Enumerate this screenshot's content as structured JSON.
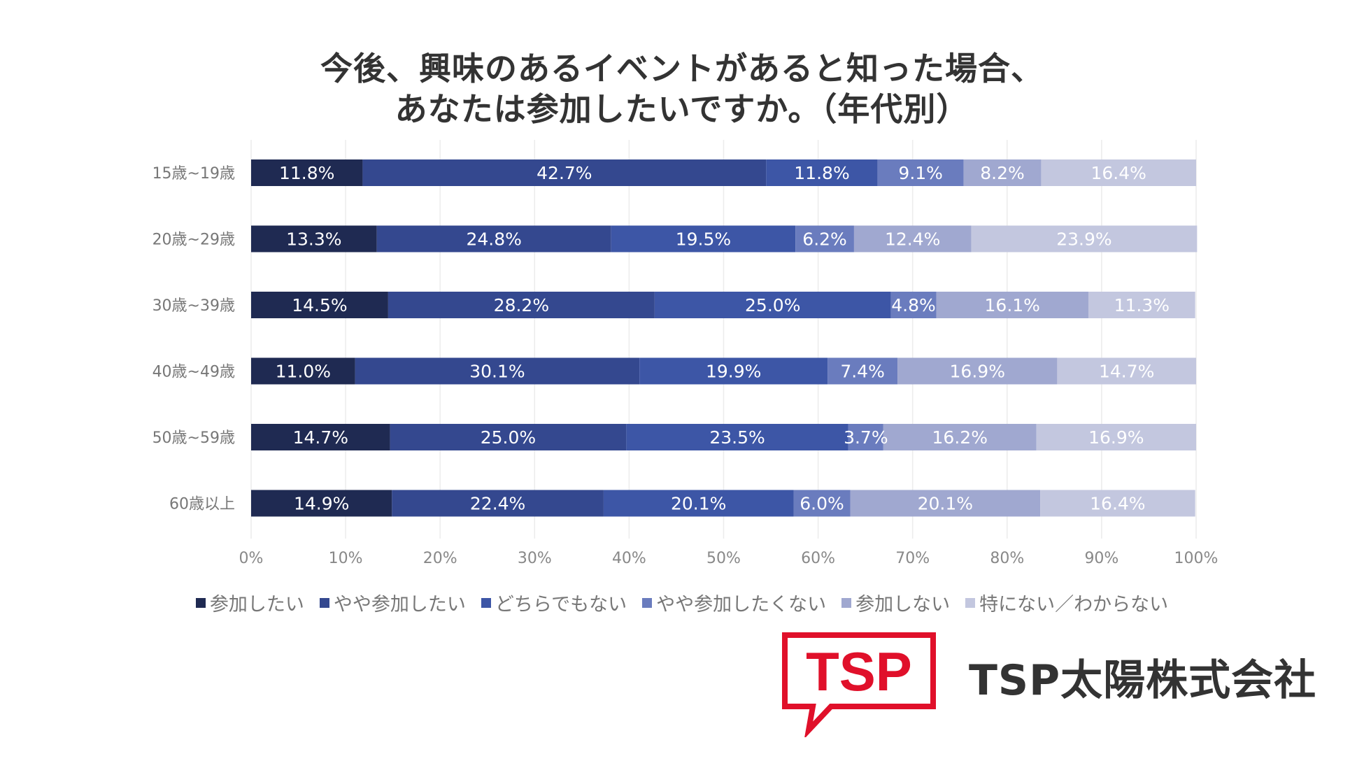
{
  "chart_data": {
    "type": "bar",
    "orientation": "horizontal",
    "stacked": true,
    "percent": true,
    "title_lines": [
      "今後、興味のあるイベントがあると知った場合、",
      "あなたは参加したいですか。（年代別）"
    ],
    "categories": [
      "15歳~19歳",
      "20歳~29歳",
      "30歳~39歳",
      "40歳~49歳",
      "50歳~59歳",
      "60歳以上"
    ],
    "series": [
      {
        "name": "参加したい",
        "color": "#1f2a52",
        "values": [
          11.8,
          13.3,
          14.5,
          11.0,
          14.7,
          14.9
        ]
      },
      {
        "name": "やや参加したい",
        "color": "#34488f",
        "values": [
          42.7,
          24.8,
          28.2,
          30.1,
          25.0,
          22.4
        ]
      },
      {
        "name": "どちらでもない",
        "color": "#3d56a6",
        "values": [
          11.8,
          19.5,
          25.0,
          19.9,
          23.5,
          20.1
        ]
      },
      {
        "name": "やや参加したくない",
        "color": "#6a7cbe",
        "values": [
          9.1,
          6.2,
          4.8,
          7.4,
          3.7,
          6.0
        ]
      },
      {
        "name": "参加しない",
        "color": "#a0a8d0",
        "values": [
          8.2,
          12.4,
          16.1,
          16.9,
          16.2,
          20.1
        ]
      },
      {
        "name": "特にない／わからない",
        "color": "#c3c7df",
        "values": [
          16.4,
          23.9,
          11.3,
          14.7,
          16.9,
          16.4
        ]
      }
    ],
    "xlim": [
      0,
      100
    ],
    "xticks": [
      "0%",
      "10%",
      "20%",
      "30%",
      "40%",
      "50%",
      "60%",
      "70%",
      "80%",
      "90%",
      "100%"
    ],
    "grid": true,
    "legend_position": "bottom"
  },
  "logo": {
    "mark_text": "TSP",
    "company_name": "TSP太陽株式会社",
    "brand_color": "#e0102a"
  }
}
